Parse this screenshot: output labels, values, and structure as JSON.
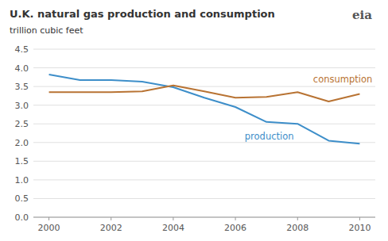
{
  "chart_data": {
    "type": "line",
    "title": "U.K. natural gas production and consumption",
    "ylabel": "trillion cubic feet",
    "x": [
      2000,
      2001,
      2002,
      2003,
      2004,
      2005,
      2006,
      2007,
      2008,
      2009,
      2010
    ],
    "series": [
      {
        "color": "#3d8ec9",
        "values": [
          3.82,
          3.67,
          3.67,
          3.63,
          3.48,
          3.2,
          2.95,
          2.55,
          2.5,
          2.05,
          1.97
        ]
      },
      {
        "color": "#b87333",
        "values": [
          3.35,
          3.35,
          3.35,
          3.37,
          3.53,
          3.37,
          3.2,
          3.22,
          3.35,
          3.1,
          3.3
        ]
      }
    ],
    "xlim": [
      1999.5,
      2010.5
    ],
    "xticks": [
      2000,
      2002,
      2004,
      2006,
      2008,
      2010
    ],
    "ylim": [
      0,
      4.5
    ],
    "yticks": [
      {
        "value": 0.0,
        "label": "0.0"
      },
      0.5,
      {
        "value": 1.0,
        "label": "1.0"
      },
      1.5,
      {
        "value": 2.0,
        "label": "2.0"
      },
      2.5,
      {
        "value": 3.0,
        "label": "3.0"
      },
      3.5,
      {
        "value": 4.0,
        "label": "4.0"
      },
      4.5
    ],
    "grid": true,
    "annotations": [
      {
        "text": "production",
        "x": 2006.3,
        "y": 2.08
      },
      {
        "text": "consumption",
        "x": 2008.5,
        "y": 3.6
      },
      {
        "text": "eia"
      }
    ]
  }
}
